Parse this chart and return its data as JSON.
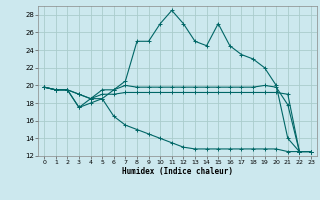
{
  "xlabel": "Humidex (Indice chaleur)",
  "bg_color": "#cce8ee",
  "grid_color": "#aacccc",
  "line_color": "#006666",
  "xlim": [
    -0.5,
    23.5
  ],
  "ylim": [
    12,
    29
  ],
  "xticks": [
    0,
    1,
    2,
    3,
    4,
    5,
    6,
    7,
    8,
    9,
    10,
    11,
    12,
    13,
    14,
    15,
    16,
    17,
    18,
    19,
    20,
    21,
    22,
    23
  ],
  "yticks": [
    12,
    14,
    16,
    18,
    20,
    22,
    24,
    26,
    28
  ],
  "series": [
    [
      19.8,
      19.5,
      19.5,
      17.5,
      18.5,
      18.5,
      19.5,
      20.5,
      25.0,
      25.0,
      27.0,
      28.5,
      27.0,
      25.0,
      24.5,
      27.0,
      24.5,
      23.5,
      23.0,
      22.0,
      20.0,
      14.0,
      12.5,
      12.5
    ],
    [
      19.8,
      19.5,
      19.5,
      19.0,
      18.5,
      19.5,
      19.5,
      20.0,
      19.8,
      19.8,
      19.8,
      19.8,
      19.8,
      19.8,
      19.8,
      19.8,
      19.8,
      19.8,
      19.8,
      20.0,
      19.8,
      17.8,
      12.5,
      12.5
    ],
    [
      19.8,
      19.5,
      19.5,
      19.0,
      18.5,
      19.0,
      19.0,
      19.2,
      19.2,
      19.2,
      19.2,
      19.2,
      19.2,
      19.2,
      19.2,
      19.2,
      19.2,
      19.2,
      19.2,
      19.2,
      19.2,
      19.0,
      12.5,
      12.5
    ],
    [
      19.8,
      19.5,
      19.5,
      17.5,
      18.0,
      18.5,
      16.5,
      15.5,
      15.0,
      14.5,
      14.0,
      13.5,
      13.0,
      12.8,
      12.8,
      12.8,
      12.8,
      12.8,
      12.8,
      12.8,
      12.8,
      12.5,
      12.5,
      12.5
    ]
  ]
}
